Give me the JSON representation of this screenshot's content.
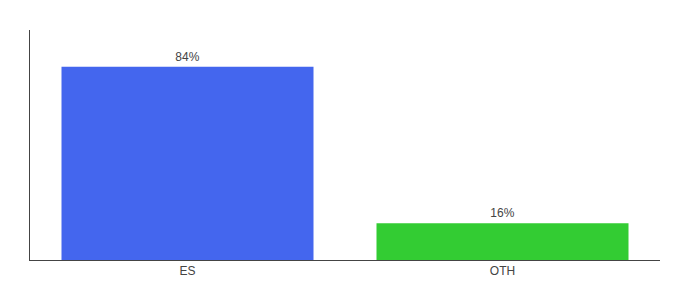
{
  "chart_data": {
    "type": "bar",
    "categories": [
      "ES",
      "OTH"
    ],
    "values": [
      84,
      16
    ],
    "value_labels": [
      "84%",
      "16%"
    ],
    "colors": [
      "#4466ee",
      "#33cc33"
    ],
    "ylim": [
      0,
      100
    ],
    "data_labels": true,
    "tick_labels": "x",
    "grid": false
  }
}
